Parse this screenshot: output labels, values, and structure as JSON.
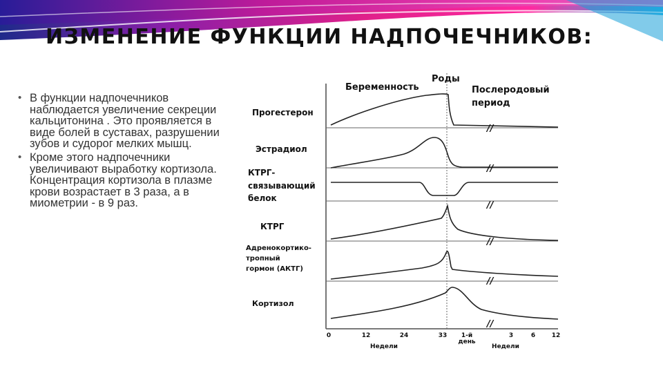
{
  "slide": {
    "title": "ИЗМЕНЕНИЕ ФУНКЦИИ НАДПОЧЕЧНИКОВ:",
    "bullets": [
      "В функции надпочечников наблюдается увеличение секреции кальцитонина . Это проявляется в виде болей в суставах, разрушении зубов и судорог мелких мышц.",
      "Кроме этого надпочечники увеличивают выработку кортизола. Концентрация кортизола в плазме крови возрастает в 3 раза, а в миометрии - в 9 раз."
    ]
  },
  "figure": {
    "phase_pregnancy": "Беременность",
    "phase_birth": "Роды",
    "phase_postpartum_1": "Послеродовый",
    "phase_postpartum_2": "период",
    "rows": [
      {
        "lines": [
          "Прогестерон"
        ]
      },
      {
        "lines": [
          "Эстрадиол"
        ]
      },
      {
        "lines": [
          "КТРГ-",
          "связывающий",
          "белок"
        ]
      },
      {
        "lines": [
          "КТРГ"
        ]
      },
      {
        "lines": [
          "Адренокортико-",
          "тропный",
          "гормон (АКТГ)"
        ]
      },
      {
        "lines": [
          "Кортизол"
        ]
      }
    ],
    "x_ticks_weeks": [
      "0",
      "12",
      "24",
      "33"
    ],
    "x_tick_day": "1-й",
    "x_tick_day_2": "день",
    "x_ticks_postpartum": [
      "3",
      "6",
      "12"
    ],
    "x_label_weeks": "Недели",
    "x_label_weeks_2": "Недели",
    "break_mark": "//"
  }
}
